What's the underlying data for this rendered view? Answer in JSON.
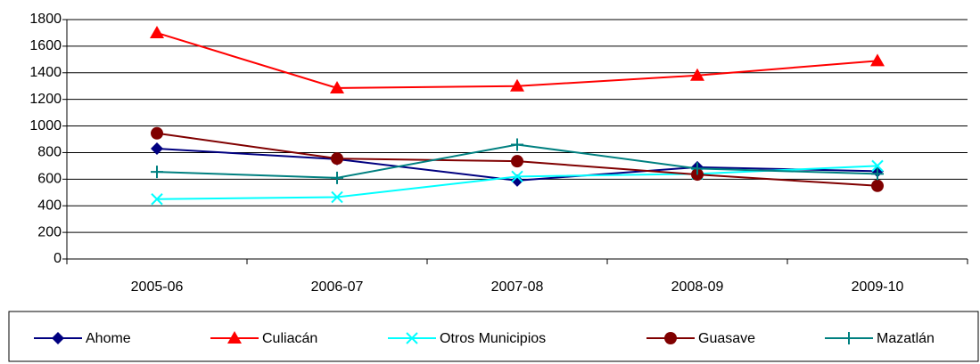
{
  "chart_data": {
    "type": "line",
    "categories": [
      "2005-06",
      "2006-07",
      "2007-08",
      "2008-09",
      "2009-10"
    ],
    "series": [
      {
        "name": "Ahome",
        "color": "#000080",
        "marker": "diamond",
        "values": [
          830,
          750,
          590,
          690,
          660
        ]
      },
      {
        "name": "Culiacán",
        "color": "#ff0000",
        "marker": "triangle",
        "values": [
          1700,
          1285,
          1300,
          1380,
          1490
        ]
      },
      {
        "name": "Otros Municipios",
        "color": "#00ffff",
        "marker": "x",
        "values": [
          450,
          465,
          620,
          640,
          700
        ]
      },
      {
        "name": "Guasave",
        "color": "#800000",
        "marker": "circle",
        "values": [
          945,
          755,
          735,
          635,
          550
        ]
      },
      {
        "name": "Mazatlán",
        "color": "#008080",
        "marker": "plus",
        "values": [
          655,
          610,
          860,
          680,
          640
        ]
      }
    ],
    "ylim": [
      0,
      1800
    ],
    "yticks": [
      0,
      200,
      400,
      600,
      800,
      1000,
      1200,
      1400,
      1600,
      1800
    ],
    "grid": true,
    "legend": "bottom"
  }
}
